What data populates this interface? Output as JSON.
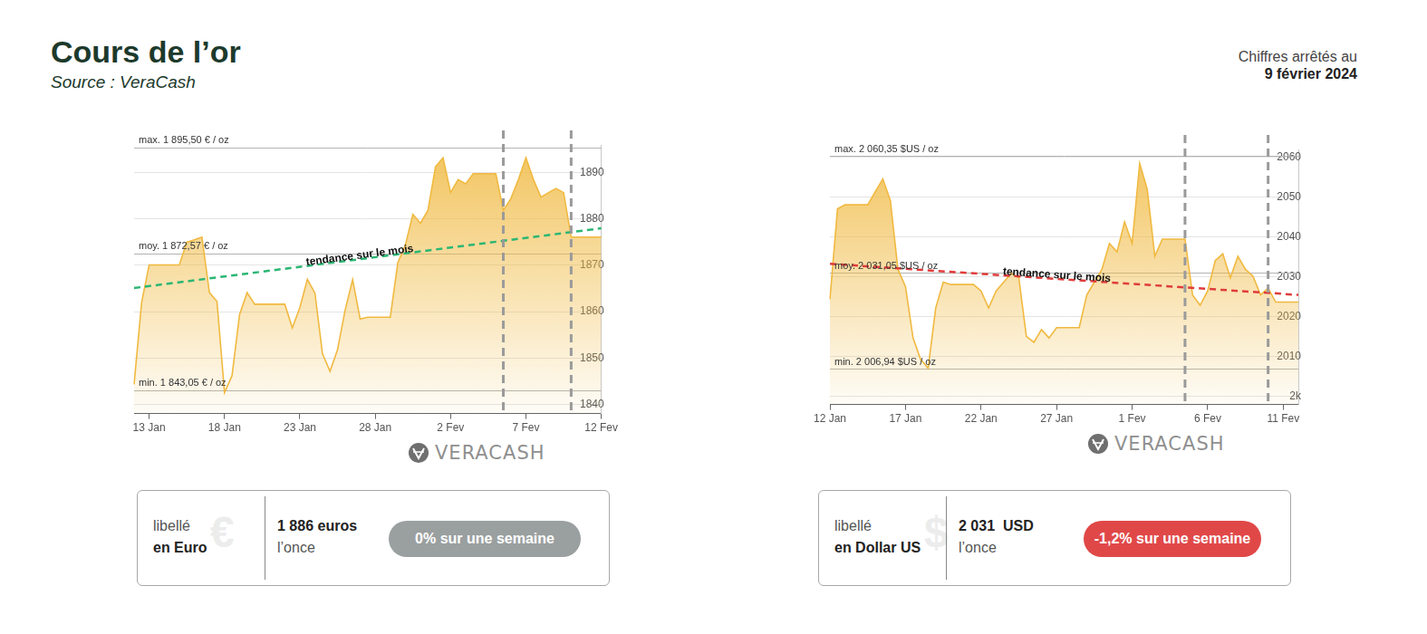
{
  "header": {
    "title": "Cours de l’or",
    "source": "Source : VeraCash",
    "date_label": "Chiffres arrêtés au",
    "date": "9 février 2024"
  },
  "chart_data": [
    {
      "type": "area",
      "categories": [
        null,
        null,
        "13 Jan",
        null,
        null,
        null,
        null,
        null,
        null,
        null,
        null,
        null,
        "18 Jan",
        null,
        null,
        null,
        null,
        null,
        null,
        null,
        null,
        null,
        "23 Jan",
        null,
        null,
        null,
        null,
        null,
        null,
        null,
        null,
        null,
        "28 Jan",
        null,
        null,
        null,
        null,
        null,
        null,
        null,
        null,
        null,
        "2 Fev",
        null,
        null,
        null,
        null,
        null,
        null,
        null,
        null,
        null,
        "7 Fev",
        null,
        null,
        null,
        null,
        null,
        null,
        null,
        null,
        null,
        "12 Fev"
      ],
      "series": [
        {
          "color": "#f0b940",
          "values": [
            1844.3,
            1862.0,
            1870.1,
            1870.1,
            1870.1,
            1870.1,
            1870.1,
            1875.0,
            1875.5,
            1876.1,
            1864.1,
            1862.2,
            1842.5,
            1846.2,
            1859.4,
            1864.1,
            1861.6,
            1861.6,
            1861.6,
            1861.6,
            1861.6,
            1856.5,
            1860.9,
            1867.0,
            1864.0,
            1850.9,
            1847.1,
            1851.8,
            1860.3,
            1866.9,
            1858.4,
            1858.8,
            1858.8,
            1858.8,
            1858.8,
            1870.6,
            1874.4,
            1881.0,
            1879.1,
            1881.9,
            1891.3,
            1893.2,
            1885.7,
            1888.5,
            1887.6,
            1889.8,
            1889.8,
            1889.8,
            1889.8,
            1881.9,
            1884.4,
            1888.5,
            1893.2,
            1888.5,
            1884.7,
            1885.7,
            1886.6,
            1885.7,
            1876.1,
            1876.1,
            1876.1,
            1876.1,
            1876.1
          ]
        },
        {
          "name": "tendance sur le mois",
          "type": "line",
          "color": "#2bb673",
          "line_style": "dashed",
          "values": [
            1865.1,
            null,
            null,
            null,
            null,
            null,
            null,
            null,
            null,
            null,
            null,
            null,
            null,
            null,
            null,
            null,
            null,
            null,
            null,
            null,
            null,
            null,
            null,
            null,
            null,
            null,
            null,
            null,
            null,
            null,
            null,
            null,
            null,
            null,
            null,
            null,
            null,
            null,
            null,
            null,
            null,
            null,
            null,
            null,
            null,
            null,
            null,
            null,
            null,
            null,
            null,
            null,
            null,
            null,
            null,
            null,
            null,
            null,
            null,
            null,
            null,
            null,
            1878.0
          ]
        }
      ],
      "ylim": [
        1838,
        1896
      ],
      "yticks": [
        1840,
        1850,
        1860,
        1870,
        1880,
        1890
      ],
      "grid": true,
      "reference_lines": [
        {
          "value": 1895.5,
          "label": "max. 1 895,50 € / oz"
        },
        {
          "value": 1872.57,
          "label": "moy. 1 872,57 € / oz"
        },
        {
          "value": 1843.05,
          "label": "min. 1 843,05 € / oz"
        }
      ],
      "vlines": [
        49,
        58
      ],
      "watermark": "VERACASH"
    },
    {
      "type": "area",
      "categories": [
        "12 Jan",
        null,
        null,
        null,
        null,
        null,
        null,
        null,
        null,
        null,
        "17 Jan",
        null,
        null,
        null,
        null,
        null,
        null,
        null,
        null,
        null,
        "22 Jan",
        null,
        null,
        null,
        null,
        null,
        null,
        null,
        null,
        null,
        "27 Jan",
        null,
        null,
        null,
        null,
        null,
        null,
        null,
        null,
        null,
        "1 Fev",
        null,
        null,
        null,
        null,
        null,
        null,
        null,
        null,
        null,
        "6 Fev",
        null,
        null,
        null,
        null,
        null,
        null,
        null,
        null,
        null,
        "11 Fev",
        null,
        null
      ],
      "series": [
        {
          "color": "#f0b940",
          "values": [
            2024.4,
            2047.1,
            2048.1,
            2048.1,
            2048.1,
            2048.1,
            2051.4,
            2054.6,
            2049.2,
            2031.9,
            2027.6,
            2014.7,
            2009.3,
            2007.1,
            2022.2,
            2028.7,
            2028.1,
            2028.1,
            2028.1,
            2028.1,
            2026.5,
            2022.2,
            2026.5,
            2028.7,
            2030.9,
            2029.8,
            2015.1,
            2013.6,
            2016.8,
            2014.7,
            2017.3,
            2017.3,
            2017.3,
            2017.3,
            2025.5,
            2028.7,
            2031.9,
            2038.4,
            2036.3,
            2043.8,
            2038.4,
            2058.5,
            2052.0,
            2035.2,
            2039.5,
            2039.5,
            2039.5,
            2039.5,
            2025.5,
            2022.9,
            2026.5,
            2034.1,
            2035.8,
            2029.8,
            2035.2,
            2031.9,
            2030.2,
            2025.5,
            2027.2,
            2023.7,
            2023.7,
            2023.7,
            2023.7
          ]
        },
        {
          "name": "tendance sur le mois",
          "type": "line",
          "color": "#e03c3c",
          "line_style": "dashed",
          "values": [
            2033.3,
            null,
            null,
            null,
            null,
            null,
            null,
            null,
            null,
            null,
            null,
            null,
            null,
            null,
            null,
            null,
            null,
            null,
            null,
            null,
            null,
            null,
            null,
            null,
            null,
            null,
            null,
            null,
            null,
            null,
            null,
            null,
            null,
            null,
            null,
            null,
            null,
            null,
            null,
            null,
            null,
            null,
            null,
            null,
            null,
            null,
            null,
            null,
            null,
            null,
            null,
            null,
            null,
            null,
            null,
            null,
            null,
            null,
            null,
            null,
            null,
            null,
            2025.5
          ]
        }
      ],
      "ylim": [
        1998,
        2062
      ],
      "yticks": [
        {
          "value": 2000,
          "label": "2k"
        },
        2010,
        2020,
        2030,
        2040,
        2050,
        2060
      ],
      "grid": true,
      "reference_lines": [
        {
          "value": 2060.35,
          "label": "max. 2 060,35 $US / oz"
        },
        {
          "value": 2031.05,
          "label": "moy. 2 031,05 $US / oz"
        },
        {
          "value": 2006.94,
          "label": "min. 2 006,94 $US / oz"
        }
      ],
      "vlines": [
        47,
        58
      ],
      "watermark": "VERACASH"
    }
  ],
  "cards": [
    {
      "label_top": "libellé",
      "label_bottom": "en Euro",
      "symbol": "€",
      "price": "1 886 euros",
      "unit": "l’once",
      "change": "0% sur une semaine",
      "color": "#9a9f9f"
    },
    {
      "label_top": "libellé",
      "label_bottom": "en Dollar US",
      "symbol": "$",
      "price": "2 031  USD",
      "unit": "l’once",
      "change": "-1,2% sur une semaine",
      "color": "#e04848"
    }
  ]
}
